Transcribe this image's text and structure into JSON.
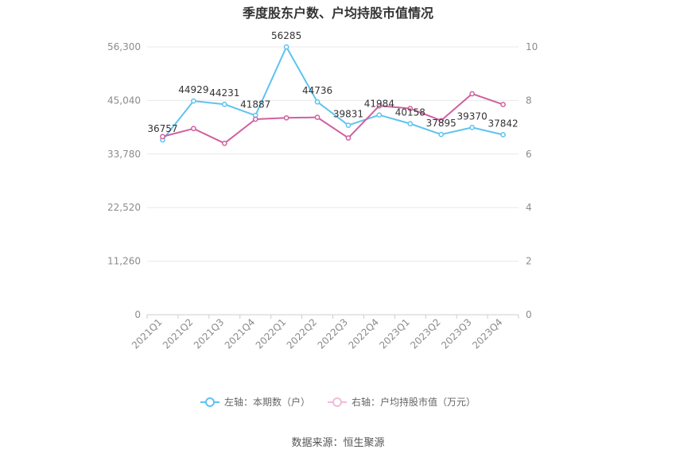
{
  "chart_data": {
    "type": "line",
    "title": "季度股东户数、户均持股市值情况",
    "categories": [
      "2021Q1",
      "2021Q2",
      "2021Q3",
      "2021Q4",
      "2022Q1",
      "2022Q2",
      "2022Q3",
      "2022Q4",
      "2023Q1",
      "2023Q2",
      "2023Q3",
      "2023Q4"
    ],
    "left_axis": {
      "ticks": [
        "0",
        "11,260",
        "22,520",
        "33,780",
        "45,040",
        "56,300"
      ],
      "ylim": [
        0,
        56300
      ]
    },
    "right_axis": {
      "ticks": [
        "0",
        "2",
        "4",
        "6",
        "8",
        "10"
      ],
      "ylim": [
        0,
        10
      ]
    },
    "series": [
      {
        "name": "左轴：本期数（户）",
        "axis": "left",
        "color": "#5ec3ee",
        "values": [
          36757,
          44929,
          44231,
          41887,
          56285,
          44736,
          39831,
          41984,
          40158,
          37895,
          39370,
          37842
        ],
        "labels": [
          "36757",
          "44929",
          "44231",
          "41887",
          "56285",
          "44736",
          "39831",
          "41984",
          "40158",
          "37895",
          "39370",
          "37842"
        ]
      },
      {
        "name": "右轴：户均持股市值（万元）",
        "axis": "right",
        "color": "#d0609f",
        "values": [
          6.65,
          6.95,
          6.4,
          7.3,
          7.35,
          7.37,
          6.6,
          7.8,
          7.7,
          7.25,
          8.25,
          7.85
        ]
      }
    ],
    "grid": true,
    "legend_position": "bottom"
  },
  "source": "数据来源：恒生聚源"
}
